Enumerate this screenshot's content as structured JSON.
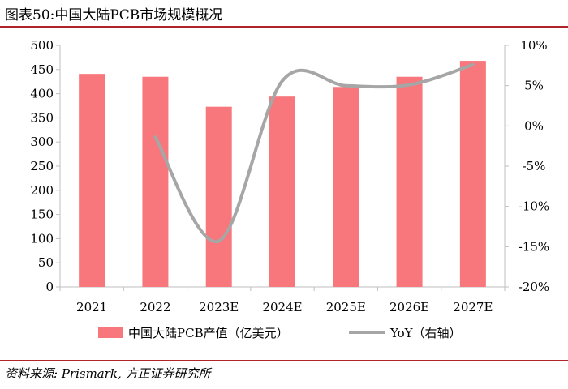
{
  "figure": {
    "title": "图表50:中国大陆PCB市场规模概况",
    "source": "资料来源: Prismark, 方正证券研究所"
  },
  "colors": {
    "bar": "#f8777d",
    "line": "#a6a6a6",
    "rule": "#b0232a",
    "axis": "#bfbfbf"
  },
  "chart_data": {
    "type": "bar",
    "title": "中国大陆PCB市场规模概况",
    "categories": [
      "2021",
      "2022",
      "2023E",
      "2024E",
      "2025E",
      "2026E",
      "2027E"
    ],
    "series": [
      {
        "name": "中国大陆PCB产值（亿美元）",
        "type": "bar",
        "axis": "left",
        "values": [
          441,
          435,
          373,
          394,
          414,
          435,
          468
        ]
      },
      {
        "name": "YoY（右轴）",
        "type": "line",
        "axis": "right",
        "unit": "%",
        "values": [
          null,
          -1.4,
          -14.3,
          5.6,
          5.0,
          5.1,
          7.6
        ]
      }
    ],
    "y_left": {
      "min": 0,
      "max": 500,
      "step": 50,
      "tick_labels": [
        "0",
        "50",
        "100",
        "150",
        "200",
        "250",
        "300",
        "350",
        "400",
        "450",
        "500"
      ]
    },
    "y_right": {
      "min": -20,
      "max": 10,
      "step": 5,
      "tick_labels": [
        "-20%",
        "-15%",
        "-10%",
        "-5%",
        "0%",
        "5%",
        "10%"
      ]
    },
    "legend": {
      "position": "bottom",
      "bar_label": "中国大陆PCB产值（亿美元）",
      "line_label": "YoY（右轴）"
    }
  }
}
